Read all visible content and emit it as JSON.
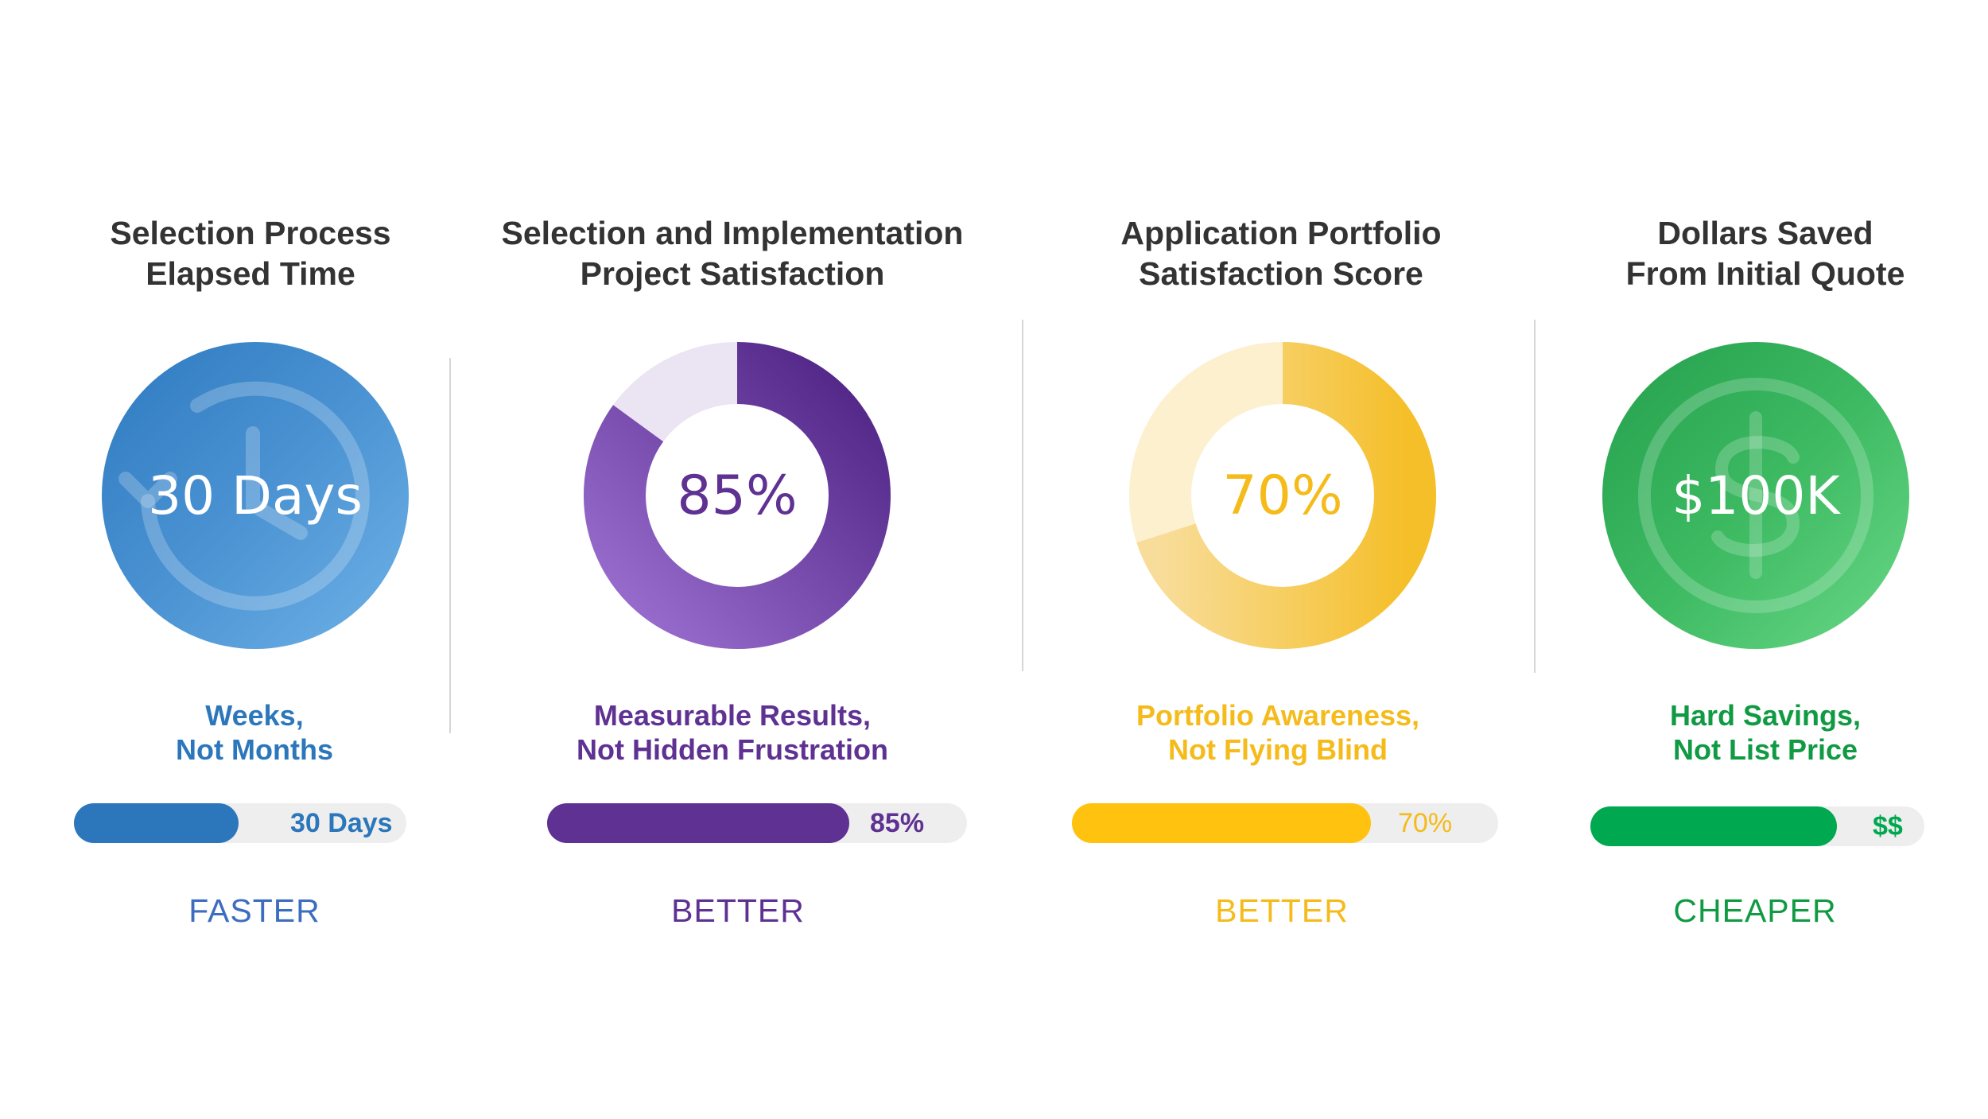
{
  "metrics": [
    {
      "title": "Selection Process\nElapsed Time",
      "display_value": "30 Days",
      "subtitle": "Weeks,\nNot Months",
      "bar_fraction": 0.5,
      "bar_label": "30 Days",
      "verdict": "FASTER",
      "icon": "history-clock-icon",
      "color": "#2c77bb"
    },
    {
      "title": "Selection and Implementation\nProject Satisfaction",
      "display_value": "85%",
      "percent": 85,
      "subtitle": "Measurable Results,\nNot Hidden Frustration",
      "bar_fraction": 0.72,
      "bar_label": "85%",
      "verdict": "BETTER",
      "color": "#5e3192"
    },
    {
      "title": "Application Portfolio\nSatisfaction Score",
      "display_value": "70%",
      "percent": 70,
      "subtitle": "Portfolio Awareness,\nNot Flying Blind",
      "bar_fraction": 0.7,
      "bar_label": "70%",
      "verdict": "BETTER",
      "color": "#ffc20e"
    },
    {
      "title": "Dollars Saved\nFrom Initial Quote",
      "display_value": "$100K",
      "subtitle": "Hard Savings,\nNot List Price",
      "bar_fraction": 0.74,
      "bar_label": "$$",
      "verdict": "CHEAPER",
      "icon": "dollar-coin-icon",
      "color": "#00a84f"
    }
  ]
}
